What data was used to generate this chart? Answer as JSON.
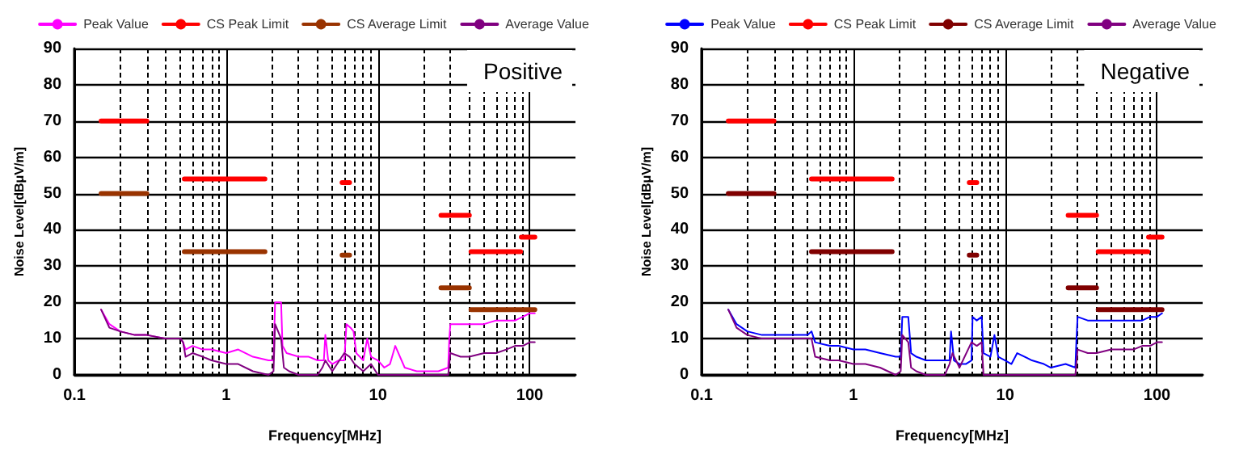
{
  "chart_data": [
    {
      "type": "line",
      "xlabel": "Frequency[MHz]",
      "ylabel": "Noise Level[dBμV/m]",
      "annotations": [
        "Positive"
      ],
      "log": "x",
      "xlim": [
        0.1,
        200
      ],
      "xticks": [
        0.1,
        1,
        10,
        100
      ],
      "ylim": [
        0,
        90
      ],
      "yticks": [
        0,
        10,
        20,
        30,
        40,
        50,
        60,
        70,
        80,
        90
      ],
      "grid": true,
      "legend": "top",
      "series": [
        {
          "name": "Peak Value",
          "color": "#ff00ff",
          "x": [
            0.15,
            0.17,
            0.2,
            0.25,
            0.3,
            0.4,
            0.5,
            0.52,
            0.54,
            0.6,
            0.7,
            0.8,
            1,
            1.2,
            1.5,
            1.9,
            2.05,
            2.1,
            2.3,
            2.35,
            2.5,
            3,
            3.5,
            4,
            4.4,
            4.5,
            4.7,
            5,
            5.5,
            6,
            6.2,
            6.6,
            6.9,
            7.2,
            8,
            8.5,
            9,
            10,
            11,
            12,
            13,
            15,
            18,
            20,
            25,
            29,
            29.5,
            30,
            35,
            40,
            50,
            60,
            70,
            80,
            90,
            100,
            108
          ],
          "values": [
            18,
            14,
            12,
            11,
            11,
            10,
            10,
            9,
            7,
            8,
            7,
            7,
            6,
            7,
            5,
            4,
            4,
            20,
            20,
            8,
            6,
            5,
            5,
            4,
            4,
            11,
            4,
            3,
            4,
            4,
            14,
            13,
            12,
            6,
            4,
            10,
            5,
            4,
            2,
            3,
            8,
            2,
            1,
            1,
            1,
            2,
            10,
            14,
            14,
            14,
            14,
            15,
            15,
            15,
            16,
            17,
            17
          ]
        },
        {
          "name": "CS Peak Limit",
          "color": "#ff0000",
          "x": [
            0.15,
            0.3,
            0.31,
            0.53,
            1.8,
            1.85,
            5.8,
            6.5,
            6.6,
            26,
            40,
            40.5,
            41,
            87,
            87.5,
            88,
            108
          ],
          "values": [
            70,
            70,
            null,
            54,
            54,
            null,
            53,
            53,
            null,
            44,
            44,
            null,
            34,
            34,
            null,
            38,
            38
          ]
        },
        {
          "name": "CS Average Limit",
          "color": "#993300",
          "x": [
            0.15,
            0.3,
            0.31,
            0.53,
            1.8,
            1.85,
            5.8,
            6.5,
            6.6,
            26,
            40,
            40.5,
            41,
            108
          ],
          "values": [
            50,
            50,
            null,
            34,
            34,
            null,
            33,
            33,
            null,
            24,
            24,
            null,
            18,
            18
          ]
        },
        {
          "name": "Average Value",
          "color": "#800080",
          "x": [
            0.15,
            0.17,
            0.2,
            0.25,
            0.3,
            0.4,
            0.5,
            0.52,
            0.54,
            0.6,
            0.7,
            0.8,
            1,
            1.2,
            1.5,
            1.9,
            2.05,
            2.1,
            2.3,
            2.4,
            2.6,
            3,
            4,
            4.3,
            4.5,
            5,
            6,
            6.5,
            7,
            8,
            9,
            10,
            12,
            15,
            20,
            29,
            30,
            35,
            40,
            50,
            60,
            70,
            80,
            90,
            100,
            108
          ],
          "values": [
            18,
            13,
            12,
            11,
            11,
            10,
            10,
            9,
            5,
            6,
            5,
            4,
            3,
            3,
            1,
            0,
            1,
            14,
            10,
            2,
            1,
            0,
            0,
            2,
            4,
            1,
            6,
            5,
            3,
            1,
            3,
            0,
            0,
            0,
            0,
            0,
            6,
            5,
            5,
            6,
            6,
            7,
            8,
            8,
            9,
            9
          ]
        }
      ]
    },
    {
      "type": "line",
      "xlabel": "Frequency[MHz]",
      "ylabel": "Noise Level[dBμV/m]",
      "annotations": [
        "Negative"
      ],
      "log": "x",
      "xlim": [
        0.1,
        200
      ],
      "xticks": [
        0.1,
        1,
        10,
        100
      ],
      "ylim": [
        0,
        90
      ],
      "yticks": [
        0,
        10,
        20,
        30,
        40,
        50,
        60,
        70,
        80,
        90
      ],
      "grid": true,
      "legend": "top",
      "series": [
        {
          "name": "Peak Value",
          "color": "#0000ff",
          "x": [
            0.15,
            0.17,
            0.2,
            0.25,
            0.3,
            0.4,
            0.5,
            0.53,
            0.56,
            0.7,
            0.8,
            1,
            1.2,
            1.5,
            1.9,
            2.05,
            2.1,
            2.3,
            2.4,
            2.6,
            3,
            3.5,
            4,
            4.3,
            4.4,
            4.6,
            5,
            5.5,
            6,
            6.1,
            6.5,
            7,
            7.2,
            8,
            8.5,
            9,
            10,
            11,
            12,
            15,
            18,
            20,
            25,
            29,
            29.5,
            30,
            35,
            40,
            50,
            60,
            70,
            80,
            90,
            100,
            108
          ],
          "values": [
            18,
            14,
            12,
            11,
            11,
            11,
            11,
            12,
            9,
            8,
            8,
            7,
            7,
            6,
            5,
            5,
            16,
            16,
            6,
            5,
            4,
            4,
            4,
            4,
            12,
            4,
            3,
            3,
            4,
            16,
            15,
            16,
            6,
            5,
            11,
            5,
            4,
            3,
            6,
            4,
            3,
            2,
            3,
            2,
            10,
            16,
            15,
            15,
            15,
            15,
            15,
            15,
            16,
            16,
            17
          ]
        },
        {
          "name": "CS Peak Limit",
          "color": "#ff0000",
          "x": [
            0.15,
            0.3,
            0.31,
            0.53,
            1.8,
            1.85,
            5.8,
            6.5,
            6.6,
            26,
            40,
            40.5,
            41,
            87,
            87.5,
            88,
            108
          ],
          "values": [
            70,
            70,
            null,
            54,
            54,
            null,
            53,
            53,
            null,
            44,
            44,
            null,
            34,
            34,
            null,
            38,
            38
          ]
        },
        {
          "name": "CS Average Limit",
          "color": "#800000",
          "x": [
            0.15,
            0.3,
            0.31,
            0.53,
            1.8,
            1.85,
            5.8,
            6.5,
            6.6,
            26,
            40,
            40.5,
            41,
            108
          ],
          "values": [
            50,
            50,
            null,
            34,
            34,
            null,
            33,
            33,
            null,
            24,
            24,
            null,
            18,
            18
          ]
        },
        {
          "name": "Average Value",
          "color": "#800080",
          "x": [
            0.15,
            0.17,
            0.2,
            0.25,
            0.3,
            0.4,
            0.5,
            0.53,
            0.56,
            0.7,
            0.8,
            1,
            1.2,
            1.5,
            1.9,
            2.05,
            2.1,
            2.3,
            2.4,
            2.6,
            3,
            4,
            4.3,
            4.5,
            5,
            6,
            6.5,
            7,
            7.2,
            8,
            10,
            15,
            20,
            29,
            30,
            35,
            40,
            50,
            60,
            70,
            80,
            90,
            100,
            108
          ],
          "values": [
            18,
            13,
            11,
            10,
            10,
            10,
            10,
            10,
            5,
            4,
            4,
            3,
            3,
            2,
            0,
            1,
            11,
            9,
            2,
            1,
            0,
            0,
            3,
            6,
            2,
            9,
            8,
            9,
            0,
            0,
            0,
            0,
            0,
            0,
            7,
            6,
            6,
            7,
            7,
            7,
            8,
            8,
            9,
            9
          ]
        }
      ]
    }
  ]
}
